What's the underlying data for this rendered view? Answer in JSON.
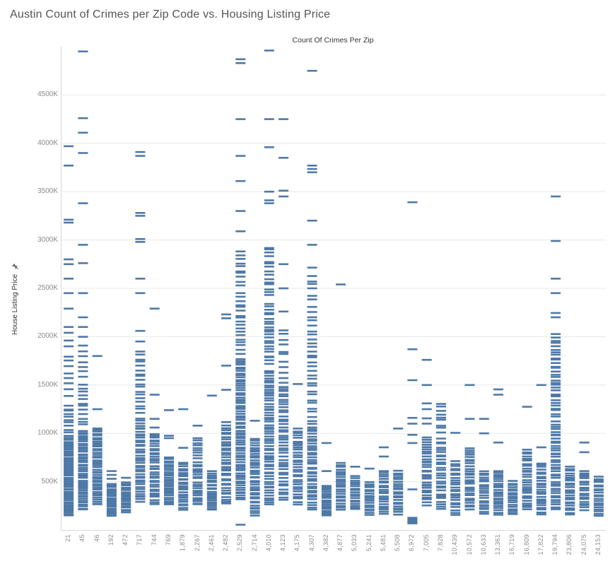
{
  "chart_data": {
    "type": "strip",
    "title": "Austin Count of Crimes per Zip Code vs. Housing Listing Price",
    "x_axis_title": "Count Of Crimes Per Zip",
    "ylabel": "House Listing Price",
    "unit": "K",
    "ylim": [
      0,
      5000
    ],
    "grid": true,
    "mark_color": "#4e79a7",
    "grid_color": "#e8e8e8",
    "axis_rule_color": "#d8d8d8",
    "tick_label_color": "#8a8a8a",
    "y_ticks": [
      {
        "label": "500K",
        "value": 500
      },
      {
        "label": "1000K",
        "value": 1000
      },
      {
        "label": "1500K",
        "value": 1500
      },
      {
        "label": "2000K",
        "value": 2000
      },
      {
        "label": "2500K",
        "value": 2500
      },
      {
        "label": "3000K",
        "value": 3000
      },
      {
        "label": "3500K",
        "value": 3500
      },
      {
        "label": "4000K",
        "value": 4000
      },
      {
        "label": "4500K",
        "value": 4500
      }
    ],
    "categories": [
      "21",
      "45",
      "46",
      "192",
      "472",
      "717",
      "744",
      "769",
      "1,879",
      "2,267",
      "2,461",
      "2,482",
      "2,529",
      "2,714",
      "4,010",
      "4,123",
      "4,175",
      "4,307",
      "4,382",
      "4,877",
      "5,033",
      "5,241",
      "5,481",
      "5,508",
      "6,972",
      "7,005",
      "7,828",
      "10,439",
      "10,572",
      "10,633",
      "13,361",
      "16,719",
      "16,809",
      "17,822",
      "19,794",
      "23,806",
      "24,075",
      "24,153"
    ],
    "series": [
      {
        "crimes": "21",
        "price_bands_k": [
          [
            150,
            260,
            10
          ],
          [
            270,
            980,
            48
          ],
          [
            1000,
            1300,
            10
          ],
          [
            1350,
            1820,
            8
          ]
        ],
        "outlier_prices_k": [
          1900,
          1960,
          2040,
          2100,
          2290,
          2450,
          2600,
          2750,
          2800,
          3180,
          3210,
          3770,
          3970
        ]
      },
      {
        "crimes": "45",
        "price_bands_k": [
          [
            200,
            1030,
            46
          ],
          [
            1060,
            1530,
            12
          ],
          [
            1560,
            2010,
            8
          ]
        ],
        "outlier_prices_k": [
          2100,
          2200,
          2450,
          2760,
          2950,
          3380,
          3900,
          4110,
          4260,
          4950
        ]
      },
      {
        "crimes": "46",
        "price_bands_k": [
          [
            250,
            1060,
            42
          ]
        ],
        "outlier_prices_k": [
          1250,
          1800
        ]
      },
      {
        "crimes": "192",
        "price_bands_k": [
          [
            140,
            480,
            22
          ]
        ],
        "outlier_prices_k": [
          530,
          570,
          610
        ]
      },
      {
        "crimes": "472",
        "price_bands_k": [
          [
            170,
            500,
            20
          ]
        ],
        "outlier_prices_k": [
          540
        ]
      },
      {
        "crimes": "717",
        "price_bands_k": [
          [
            280,
            1160,
            40
          ],
          [
            1200,
            1860,
            18
          ]
        ],
        "outlier_prices_k": [
          1950,
          2060,
          2450,
          2600,
          2980,
          3010,
          3250,
          3280,
          3870,
          3910
        ]
      },
      {
        "crimes": "744",
        "price_bands_k": [
          [
            260,
            1010,
            34
          ]
        ],
        "outlier_prices_k": [
          1060,
          1150,
          1400,
          2290
        ]
      },
      {
        "crimes": "769",
        "price_bands_k": [
          [
            250,
            760,
            27
          ]
        ],
        "outlier_prices_k": [
          950,
          975,
          1240
        ]
      },
      {
        "crimes": "1,879",
        "price_bands_k": [
          [
            200,
            705,
            25
          ]
        ],
        "outlier_prices_k": [
          850,
          1250
        ]
      },
      {
        "crimes": "2,267",
        "price_bands_k": [
          [
            250,
            500,
            13
          ],
          [
            520,
            710,
            9
          ],
          [
            730,
            960,
            9
          ]
        ],
        "outlier_prices_k": [
          1080
        ]
      },
      {
        "crimes": "2,461",
        "price_bands_k": [
          [
            200,
            615,
            22
          ]
        ],
        "outlier_prices_k": [
          1390
        ]
      },
      {
        "crimes": "2,482",
        "price_bands_k": [
          [
            260,
            1120,
            36
          ]
        ],
        "outlier_prices_k": [
          1450,
          1700,
          2190,
          2230
        ]
      },
      {
        "crimes": "2,529",
        "price_bands_k": [
          [
            300,
            1780,
            68
          ],
          [
            1810,
            2460,
            18
          ],
          [
            2510,
            2900,
            10
          ]
        ],
        "outlier_prices_k": [
          55,
          3090,
          3300,
          3610,
          3870,
          4250,
          4830,
          4870
        ]
      },
      {
        "crimes": "2,714",
        "price_bands_k": [
          [
            140,
            950,
            38
          ]
        ],
        "outlier_prices_k": [
          1130
        ]
      },
      {
        "crimes": "4,010",
        "price_bands_k": [
          [
            250,
            1660,
            58
          ],
          [
            1700,
            2360,
            22
          ],
          [
            2400,
            2950,
            15
          ]
        ],
        "outlier_prices_k": [
          3380,
          3410,
          3500,
          3960,
          4250,
          4960
        ]
      },
      {
        "crimes": "4,123",
        "price_bands_k": [
          [
            300,
            1530,
            44
          ],
          [
            1560,
            2110,
            10
          ]
        ],
        "outlier_prices_k": [
          2260,
          2500,
          2750,
          3450,
          3510,
          3850,
          4250
        ]
      },
      {
        "crimes": "4,175",
        "price_bands_k": [
          [
            260,
            1060,
            32
          ]
        ],
        "outlier_prices_k": [
          1510
        ]
      },
      {
        "crimes": "4,307",
        "price_bands_k": [
          [
            200,
            1130,
            38
          ],
          [
            1160,
            2260,
            26
          ],
          [
            2300,
            2720,
            8
          ]
        ],
        "outlier_prices_k": [
          2950,
          3200,
          3700,
          3735,
          3770,
          4750
        ]
      },
      {
        "crimes": "4,382",
        "price_bands_k": [
          [
            140,
            465,
            20
          ]
        ],
        "outlier_prices_k": [
          610,
          900
        ]
      },
      {
        "crimes": "4,877",
        "price_bands_k": [
          [
            200,
            700,
            24
          ]
        ],
        "outlier_prices_k": [
          2540
        ]
      },
      {
        "crimes": "5,033",
        "price_bands_k": [
          [
            200,
            565,
            18
          ]
        ],
        "outlier_prices_k": [
          655
        ]
      },
      {
        "crimes": "5,241",
        "price_bands_k": [
          [
            150,
            505,
            18
          ]
        ],
        "outlier_prices_k": [
          635
        ]
      },
      {
        "crimes": "5,481",
        "price_bands_k": [
          [
            150,
            625,
            22
          ]
        ],
        "outlier_prices_k": [
          760,
          855
        ]
      },
      {
        "crimes": "5,508",
        "price_bands_k": [
          [
            150,
            620,
            22
          ]
        ],
        "outlier_prices_k": [
          1050
        ]
      },
      {
        "crimes": "6,972",
        "price_bands_k": [
          [
            60,
            130,
            6
          ]
        ],
        "outlier_prices_k": [
          420,
          900,
          985,
          1100,
          1160,
          1550,
          1870,
          3390
        ]
      },
      {
        "crimes": "7,005",
        "price_bands_k": [
          [
            250,
            965,
            30
          ]
        ],
        "outlier_prices_k": [
          1100,
          1155,
          1250,
          1310,
          1500,
          1760
        ]
      },
      {
        "crimes": "7,828",
        "price_bands_k": [
          [
            200,
            955,
            28
          ],
          [
            1000,
            1330,
            9
          ]
        ],
        "outlier_prices_k": []
      },
      {
        "crimes": "10,439",
        "price_bands_k": [
          [
            150,
            720,
            24
          ]
        ],
        "outlier_prices_k": [
          1005
        ]
      },
      {
        "crimes": "10,572",
        "price_bands_k": [
          [
            200,
            860,
            28
          ]
        ],
        "outlier_prices_k": [
          1150,
          1500
        ]
      },
      {
        "crimes": "10,633",
        "price_bands_k": [
          [
            150,
            625,
            20
          ]
        ],
        "outlier_prices_k": [
          1000,
          1150
        ]
      },
      {
        "crimes": "13,361",
        "price_bands_k": [
          [
            150,
            625,
            22
          ]
        ],
        "outlier_prices_k": [
          905,
          1400,
          1455
        ]
      },
      {
        "crimes": "16,719",
        "price_bands_k": [
          [
            150,
            515,
            18
          ]
        ],
        "outlier_prices_k": []
      },
      {
        "crimes": "16,809",
        "price_bands_k": [
          [
            200,
            845,
            27
          ]
        ],
        "outlier_prices_k": [
          1275
        ]
      },
      {
        "crimes": "17,822",
        "price_bands_k": [
          [
            150,
            705,
            24
          ]
        ],
        "outlier_prices_k": [
          855,
          1500
        ]
      },
      {
        "crimes": "19,794",
        "price_bands_k": [
          [
            200,
            1130,
            38
          ],
          [
            1160,
            2030,
            30
          ]
        ],
        "outlier_prices_k": [
          2200,
          2245,
          2450,
          2600,
          2990,
          3450
        ]
      },
      {
        "crimes": "23,806",
        "price_bands_k": [
          [
            150,
            665,
            24
          ]
        ],
        "outlier_prices_k": []
      },
      {
        "crimes": "24,075",
        "price_bands_k": [
          [
            200,
            625,
            20
          ]
        ],
        "outlier_prices_k": [
          805,
          905
        ]
      },
      {
        "crimes": "24,153",
        "price_bands_k": [
          [
            140,
            565,
            20
          ]
        ],
        "outlier_prices_k": []
      }
    ]
  }
}
